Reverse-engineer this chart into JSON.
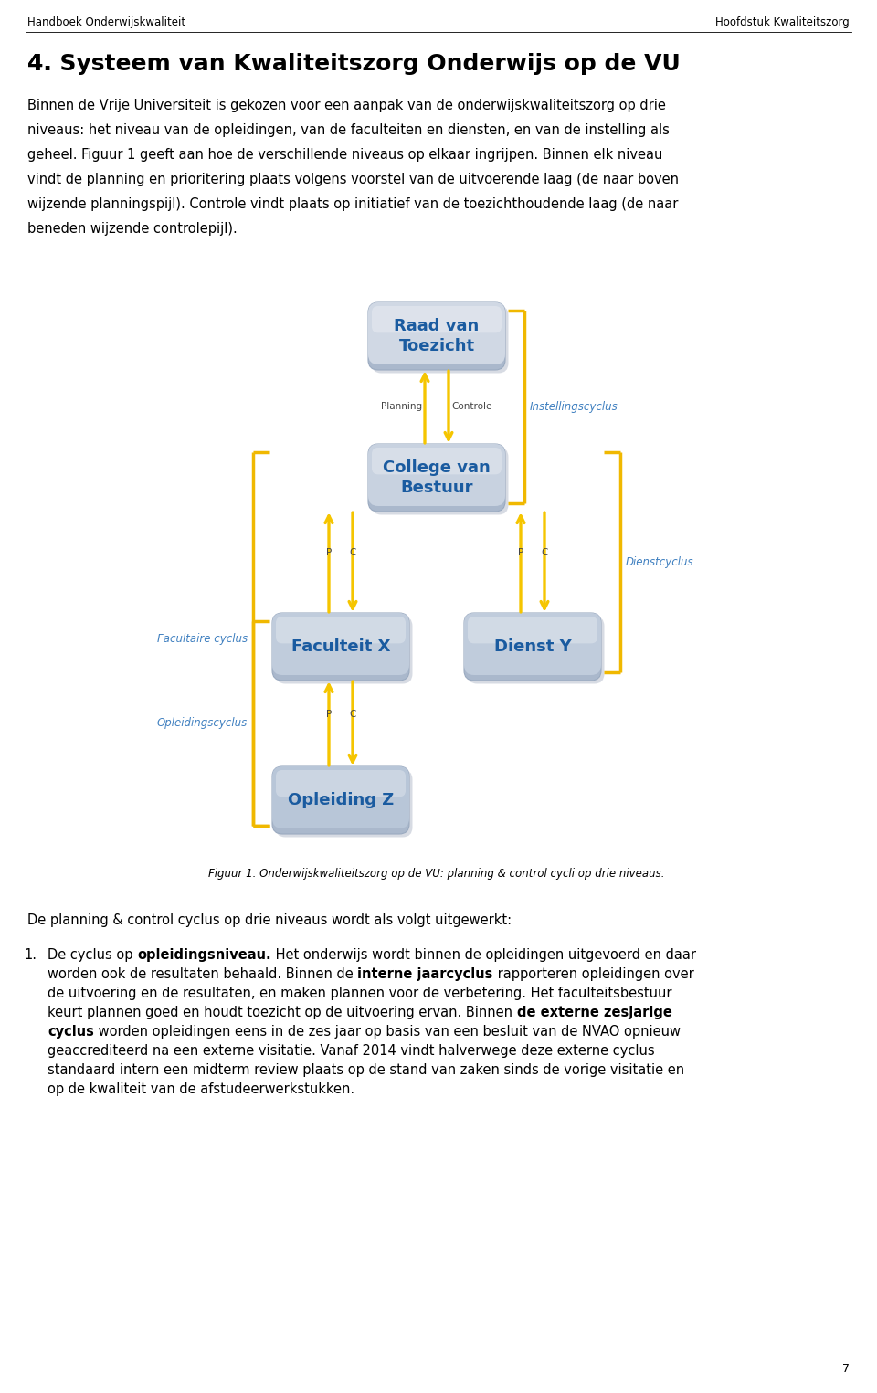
{
  "header_left": "Handboek Onderwijskwaliteit",
  "header_right": "Hoofdstuk Kwaliteitszorg",
  "title_parts": [
    {
      "text": "4. ",
      "small_caps": false
    },
    {
      "text": "S",
      "small_caps": true,
      "large": true
    },
    {
      "text": "YSTEEM VAN ",
      "small_caps": true,
      "large": false
    },
    {
      "text": "K",
      "small_caps": true,
      "large": true
    },
    {
      "text": "WALITEITSZORG ",
      "small_caps": true,
      "large": false
    },
    {
      "text": "O",
      "small_caps": true,
      "large": true
    },
    {
      "text": "NDERWIJS OP DE ",
      "small_caps": true,
      "large": false
    },
    {
      "text": "VU",
      "small_caps": true,
      "large": true
    }
  ],
  "para1_lines": [
    "Binnen de Vrije Universiteit is gekozen voor een aanpak van de onderwijskwaliteitszorg op drie",
    "niveaus: het niveau van de opleidingen, van de faculteiten en diensten, en van de instelling als",
    "geheel. Figuur 1 geeft aan hoe de verschillende niveaus op elkaar ingrijpen. Binnen elk niveau",
    "vindt de planning en prioritering plaats volgens voorstel van de uitvoerende laag (de naar boven",
    "wijzende planningspijl). Controle vindt plaats op initiatief van de toezichthoudende laag (de naar",
    "beneden wijzende controlepijl)."
  ],
  "box_raad": "Raad van\nToezicht",
  "box_college": "College van\nBestuur",
  "box_faculteit": "Faculteit X",
  "box_dienst": "Dienst Y",
  "box_opleiding": "Opleiding Z",
  "label_planning": "Planning",
  "label_controle": "Controle",
  "label_p": "P",
  "label_c": "C",
  "label_instellingscyclus": "Instellingscyclus",
  "label_facultaire": "Facultaire cyclus",
  "label_dienstcyclus": "Dienstcyclus",
  "label_opleidingscyclus": "Opleidingscyclus",
  "fig_caption": "Figuur 1. Onderwijskwaliteitszorg op de VU: planning & control cycli op drie niveaus.",
  "para2_intro": "De planning & control cyclus op drie niveaus wordt als volgt uitgewerkt:",
  "box_fill_raad": "#d0d8e4",
  "box_fill_college": "#c8d2e0",
  "box_fill_fac": "#c0ccdc",
  "box_fill_opl": "#b8c6d8",
  "box_text_color": "#1a5ba0",
  "arrow_color": "#f5c500",
  "bracket_color": "#f0b800",
  "cycle_label_color": "#4080c0",
  "shadow_color": "#b0b8c8",
  "page_num": "7"
}
